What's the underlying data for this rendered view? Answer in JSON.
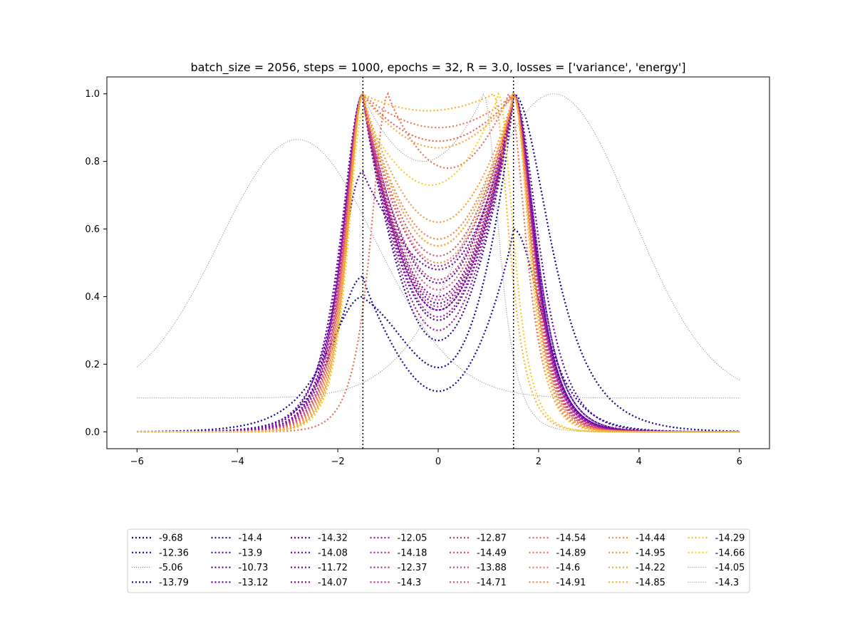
{
  "chart_data": {
    "type": "line",
    "title": "batch_size = 2056, steps = 1000, epochs = 32, R = 3.0, losses = ['variance', 'energy']",
    "xlabel": "",
    "ylabel": "",
    "xlim": [
      -6.6,
      6.6
    ],
    "ylim": [
      -0.05,
      1.05
    ],
    "xticks": [
      -6,
      -4,
      -2,
      0,
      2,
      4,
      6
    ],
    "xtick_labels": [
      "−6",
      "−4",
      "−2",
      "0",
      "2",
      "4",
      "6"
    ],
    "yticks": [
      0.0,
      0.2,
      0.4,
      0.6,
      0.8,
      1.0
    ],
    "ytick_labels": [
      "0.0",
      "0.2",
      "0.4",
      "0.6",
      "0.8",
      "1.0"
    ],
    "grid": false,
    "vlines": [
      -1.5,
      1.5
    ],
    "legend": {
      "placement": "bottom-center",
      "columns": 8
    },
    "series": [
      {
        "name": "-9.68",
        "color": "#0d0887",
        "style": "dotted",
        "lw": 2.2,
        "shape": "double",
        "peaks": [
          -1.5,
          1.5
        ],
        "left_h": 0.4,
        "right_h": 1.0,
        "mid": 0.19,
        "width": 1.4
      },
      {
        "name": "-12.36",
        "color": "#1e0690",
        "style": "dotted",
        "lw": 2.2,
        "shape": "double",
        "peaks": [
          -1.5,
          1.5
        ],
        "left_h": 0.46,
        "right_h": 0.6,
        "mid": 0.12,
        "width": 1.1
      },
      {
        "name": "-5.06",
        "color": "#808080",
        "style": "thin",
        "lw": 1.0,
        "shape": "broad",
        "center": -2.8,
        "height": 0.865,
        "end": 0.1,
        "width": 2.2
      },
      {
        "name": "-13.79",
        "color": "#2c0594",
        "style": "dotted",
        "lw": 2.2,
        "shape": "double",
        "peaks": [
          -1.5,
          1.5
        ],
        "left_h": 1.0,
        "right_h": 1.0,
        "mid": 0.27,
        "width": 0.85
      },
      {
        "name": "-14.4",
        "color": "#3a049a",
        "style": "dotted",
        "lw": 2.2,
        "shape": "double",
        "peaks": [
          -1.5,
          1.5
        ],
        "left_h": 1.0,
        "right_h": 1.0,
        "mid": 0.33,
        "width": 0.8
      },
      {
        "name": "-13.9",
        "color": "#47039f",
        "style": "dotted",
        "lw": 2.2,
        "shape": "double",
        "peaks": [
          -1.5,
          1.5
        ],
        "left_h": 1.0,
        "right_h": 1.0,
        "mid": 0.36,
        "width": 0.8
      },
      {
        "name": "-10.73",
        "color": "#5302a3",
        "style": "dotted",
        "lw": 2.2,
        "shape": "double",
        "peaks": [
          -1.5,
          1.5
        ],
        "left_h": 0.77,
        "right_h": 1.0,
        "mid": 0.48,
        "width": 0.95
      },
      {
        "name": "-13.12",
        "color": "#5f01a6",
        "style": "dotted",
        "lw": 2.2,
        "shape": "double",
        "peaks": [
          -1.5,
          1.5
        ],
        "left_h": 1.0,
        "right_h": 1.0,
        "mid": 0.44,
        "width": 0.8
      },
      {
        "name": "-14.32",
        "color": "#6a00a8",
        "style": "dotted",
        "lw": 2.2,
        "shape": "double",
        "peaks": [
          -1.5,
          1.5
        ],
        "left_h": 1.0,
        "right_h": 1.0,
        "mid": 0.38,
        "width": 0.78
      },
      {
        "name": "-14.08",
        "color": "#7701a8",
        "style": "dotted",
        "lw": 2.2,
        "shape": "double",
        "peaks": [
          -1.5,
          1.5
        ],
        "left_h": 1.0,
        "right_h": 1.0,
        "mid": 0.4,
        "width": 0.78
      },
      {
        "name": "-11.72",
        "color": "#8305a7",
        "style": "dotted",
        "lw": 2.2,
        "shape": "double",
        "peaks": [
          -1.5,
          1.5
        ],
        "left_h": 1.0,
        "right_h": 1.0,
        "mid": 0.55,
        "width": 0.85
      },
      {
        "name": "-14.07",
        "color": "#8f0da4",
        "style": "dotted",
        "lw": 2.2,
        "shape": "double",
        "peaks": [
          -1.5,
          1.5
        ],
        "left_h": 1.0,
        "right_h": 1.0,
        "mid": 0.36,
        "width": 0.76
      },
      {
        "name": "-12.05",
        "color": "#9a169f",
        "style": "dotted",
        "lw": 2.2,
        "shape": "double",
        "peaks": [
          -1.5,
          1.5
        ],
        "left_h": 1.0,
        "right_h": 1.0,
        "mid": 0.3,
        "width": 0.78
      },
      {
        "name": "-14.18",
        "color": "#a51f99",
        "style": "dotted",
        "lw": 2.2,
        "shape": "double",
        "peaks": [
          -1.5,
          1.5
        ],
        "left_h": 1.0,
        "right_h": 1.0,
        "mid": 0.34,
        "width": 0.75
      },
      {
        "name": "-12.37",
        "color": "#b02991",
        "style": "dotted",
        "lw": 2.2,
        "shape": "double",
        "peaks": [
          -1.5,
          1.5
        ],
        "left_h": 1.0,
        "right_h": 1.0,
        "mid": 0.49,
        "width": 0.75
      },
      {
        "name": "-14.3",
        "color": "#b93289",
        "style": "dotted",
        "lw": 2.2,
        "shape": "double",
        "peaks": [
          -1.5,
          1.5
        ],
        "left_h": 1.0,
        "right_h": 1.0,
        "mid": 0.37,
        "width": 0.72
      },
      {
        "name": "-12.87",
        "color": "#c23c81",
        "style": "dotted",
        "lw": 2.2,
        "shape": "double",
        "peaks": [
          -1.5,
          1.5
        ],
        "left_h": 1.0,
        "right_h": 1.0,
        "mid": 0.45,
        "width": 0.72
      },
      {
        "name": "-14.49",
        "color": "#cb4679",
        "style": "dotted",
        "lw": 2.2,
        "shape": "double",
        "peaks": [
          -1.5,
          1.5
        ],
        "left_h": 1.0,
        "right_h": 1.0,
        "mid": 0.39,
        "width": 0.7
      },
      {
        "name": "-13.88",
        "color": "#d35171",
        "style": "dotted",
        "lw": 2.2,
        "shape": "double",
        "peaks": [
          -1.5,
          1.5
        ],
        "left_h": 1.0,
        "right_h": 1.0,
        "mid": 0.52,
        "width": 0.7
      },
      {
        "name": "-14.71",
        "color": "#da5b69",
        "style": "dotted",
        "lw": 2.2,
        "shape": "double",
        "peaks": [
          -1.5,
          1.5
        ],
        "left_h": 1.0,
        "right_h": 1.0,
        "mid": 0.42,
        "width": 0.68
      },
      {
        "name": "-14.54",
        "color": "#e16462",
        "style": "dotted",
        "lw": 2.2,
        "shape": "double",
        "peaks": [
          -1.5,
          1.5
        ],
        "left_h": 1.0,
        "right_h": 1.0,
        "mid": 0.86,
        "width": 0.68
      },
      {
        "name": "-14.89",
        "color": "#e76f5a",
        "style": "dotted",
        "lw": 2.2,
        "shape": "double",
        "peaks": [
          -1.0,
          1.4
        ],
        "left_h": 1.0,
        "right_h": 1.0,
        "mid": 0.78,
        "width": 0.66
      },
      {
        "name": "-14.6",
        "color": "#ed7953",
        "style": "dotted",
        "lw": 2.2,
        "shape": "double",
        "peaks": [
          -1.5,
          1.5
        ],
        "left_h": 1.0,
        "right_h": 1.0,
        "mid": 0.9,
        "width": 0.66
      },
      {
        "name": "-14.91",
        "color": "#f2844b",
        "style": "dotted",
        "lw": 2.2,
        "shape": "double",
        "peaks": [
          -1.5,
          1.5
        ],
        "left_h": 1.0,
        "right_h": 1.0,
        "mid": 0.57,
        "width": 0.64
      },
      {
        "name": "-14.44",
        "color": "#f68f44",
        "style": "dotted",
        "lw": 2.2,
        "shape": "double",
        "peaks": [
          -1.5,
          1.5
        ],
        "left_h": 1.0,
        "right_h": 1.0,
        "mid": 0.5,
        "width": 0.64
      },
      {
        "name": "-14.95",
        "color": "#f99b3e",
        "style": "dotted",
        "lw": 2.2,
        "shape": "double",
        "peaks": [
          -1.5,
          1.5
        ],
        "left_h": 1.0,
        "right_h": 1.0,
        "mid": 0.62,
        "width": 0.62
      },
      {
        "name": "-14.22",
        "color": "#fca636",
        "style": "dotted",
        "lw": 2.2,
        "shape": "double",
        "peaks": [
          -1.5,
          1.5
        ],
        "left_h": 1.0,
        "right_h": 1.0,
        "mid": 0.84,
        "width": 0.62
      },
      {
        "name": "-14.85",
        "color": "#fdb32f",
        "style": "dotted",
        "lw": 2.2,
        "shape": "double",
        "peaks": [
          -1.5,
          1.1
        ],
        "left_h": 1.0,
        "right_h": 1.0,
        "mid": 0.95,
        "width": 0.6
      },
      {
        "name": "-14.29",
        "color": "#fec029",
        "style": "dotted",
        "lw": 2.2,
        "shape": "double",
        "peaks": [
          -1.5,
          1.5
        ],
        "left_h": 1.0,
        "right_h": 1.0,
        "mid": 0.55,
        "width": 0.58
      },
      {
        "name": "-14.66",
        "color": "#fccd25",
        "style": "dotted",
        "lw": 2.2,
        "shape": "double",
        "peaks": [
          -1.5,
          1.2
        ],
        "left_h": 0.95,
        "right_h": 1.0,
        "mid": 0.73,
        "width": 0.58
      },
      {
        "name": "-14.05",
        "color": "#808080",
        "style": "thin",
        "lw": 1.0,
        "shape": "broad",
        "center": 2.3,
        "height": 1.0,
        "end": 0.1,
        "width": 2.2
      },
      {
        "name": "-14.3",
        "color": "#808080",
        "style": "thin",
        "lw": 1.0,
        "shape": "double",
        "peaks": [
          -1.5,
          0.9
        ],
        "left_h": 1.0,
        "right_h": 1.0,
        "mid": 0.8,
        "width": 0.6
      }
    ]
  }
}
